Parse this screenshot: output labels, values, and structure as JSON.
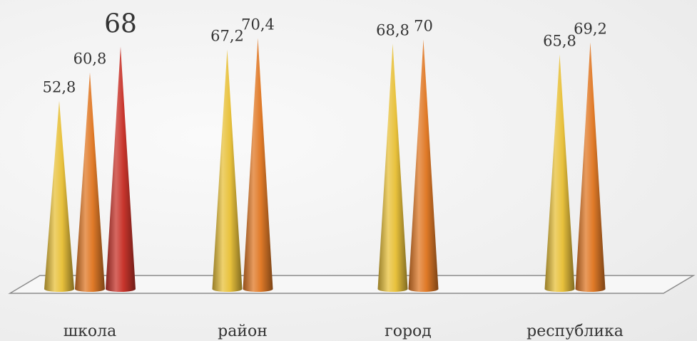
{
  "chart_data": {
    "type": "bar",
    "shape": "cone",
    "categories": [
      "школа",
      "район",
      "город",
      "республика"
    ],
    "series": [
      {
        "color": "#e8c13c",
        "values": [
          52.8,
          67.2,
          68.8,
          65.8
        ],
        "labels": [
          "52,8",
          "67,2",
          "68,8",
          "65,8"
        ]
      },
      {
        "color": "#e07a28",
        "values": [
          60.8,
          70.4,
          70,
          69.2
        ],
        "labels": [
          "60,8",
          "70,4",
          "70",
          "69,2"
        ]
      },
      {
        "color": "#c8352c",
        "values": [
          68,
          null,
          null,
          null
        ],
        "labels": [
          "68",
          "",
          "",
          ""
        ]
      }
    ],
    "title": "",
    "xlabel": "",
    "ylabel": "",
    "highlight_label": "68"
  }
}
